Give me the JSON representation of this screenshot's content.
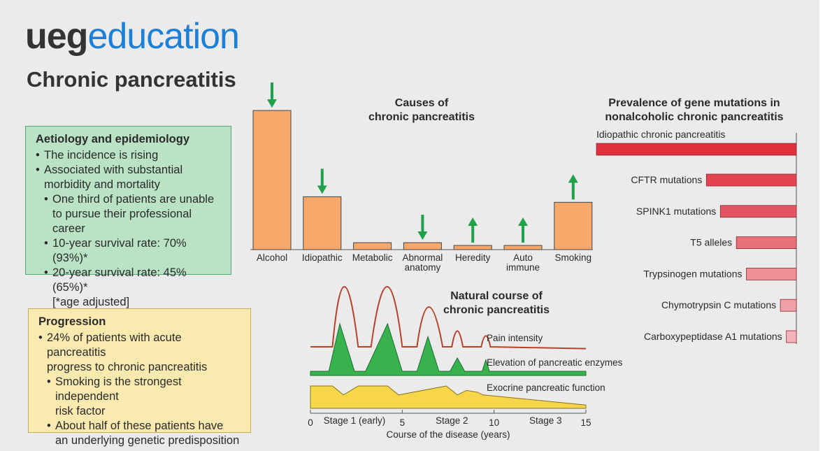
{
  "logo": {
    "part1": "ueg",
    "part2": "education"
  },
  "page_title": "Chronic pancreatitis",
  "aetiology": {
    "heading": "Aetiology and epidemiology",
    "items": [
      "The incidence is rising",
      "Associated with substantial",
      "morbidity and mortality",
      "One third of patients are unable",
      "to pursue their professional career",
      "10-year survival rate: 70% (93%)*",
      "20-year survival rate: 45% (65%)*",
      "[*age adjusted]"
    ]
  },
  "progression": {
    "heading": "Progression",
    "items": [
      "24% of patients with acute pancreatitis",
      "progress to chronic pancreatitis",
      "Smoking is the strongest independent",
      "risk factor",
      "About half of these patients have",
      "an underlying genetic predisposition"
    ]
  },
  "colors": {
    "panel": "#ebebeb",
    "bar": "#f7a86a",
    "arrow": "#1fa24a",
    "pain": "#b5432a",
    "enzyme": "#37b24d",
    "function": "#f7d64a",
    "gene_bar_dark": "#e0323c",
    "gene_bar_light": "#f2a4a9"
  },
  "chart_data": [
    {
      "type": "bar",
      "title_lines": [
        "Causes of",
        "chronic pancreatitis"
      ],
      "categories": [
        "Alcohol",
        "Idiopathic",
        "Metabolic",
        "Abnormal anatomy",
        "Heredity",
        "Auto immune",
        "Smoking"
      ],
      "label_lines": [
        [
          "Alcohol"
        ],
        [
          "Idiopathic"
        ],
        [
          "Metabolic"
        ],
        [
          "Abnormal",
          "anatomy"
        ],
        [
          "Heredity"
        ],
        [
          "Auto",
          "immune"
        ],
        [
          "Smoking"
        ]
      ],
      "values": [
        100,
        38,
        5,
        5,
        3,
        3,
        34
      ],
      "trend": [
        "down",
        "down",
        "none",
        "down",
        "up",
        "up",
        "up"
      ],
      "ylim": [
        0,
        100
      ]
    },
    {
      "type": "bar",
      "orientation": "horizontal",
      "title_lines": [
        "Prevalence of gene mutations in",
        "nonalcoholic chronic pancreatitis"
      ],
      "categories": [
        "Idiopathic chronic pancreatitis",
        "CFTR mutations",
        "SPINK1 mutations",
        "T5 alleles",
        "Trypsinogen mutations",
        "Chymotrypsin C mutations",
        "Carboxypeptidase A1 mutations"
      ],
      "values": [
        100,
        45,
        38,
        30,
        25,
        8,
        5
      ],
      "ylim": [
        0,
        100
      ]
    },
    {
      "type": "line",
      "title_lines": [
        "Natural course of",
        "chronic pancreatitis"
      ],
      "xlabel": "Course of the disease (years)",
      "xlim": [
        0,
        15
      ],
      "x_ticks": [
        0,
        5,
        10,
        15
      ],
      "stages": [
        {
          "label": "Stage 1 (early)",
          "x": 2.4
        },
        {
          "label": "Stage 2",
          "x": 7.7
        },
        {
          "label": "Stage 3",
          "x": 12.8
        }
      ],
      "series": [
        {
          "name": "Pain intensity",
          "x": [
            0,
            1.2,
            1.8,
            2.6,
            3.3,
            4.2,
            5.0,
            5.8,
            6.4,
            7.2,
            7.7,
            8.0,
            8.3,
            9.3,
            9.55,
            9.8,
            15
          ],
          "values": [
            0,
            0,
            100,
            0,
            0,
            100,
            0,
            0,
            67,
            0,
            0,
            28,
            0,
            0,
            20,
            0,
            -3
          ]
        },
        {
          "name": "Elevation of pancreatic enzymes",
          "x": [
            0,
            1.0,
            1.6,
            2.4,
            3.0,
            4.2,
            5.0,
            5.8,
            6.4,
            7.0,
            7.6,
            8.0,
            8.4,
            9.35,
            9.55,
            9.75,
            15
          ],
          "values": [
            0,
            0,
            100,
            0,
            0,
            100,
            0,
            0,
            73,
            0,
            0,
            28,
            0,
            0,
            24,
            0,
            0
          ]
        },
        {
          "name": "Exocrine pancreatic function",
          "x": [
            0,
            1.2,
            1.8,
            2.6,
            3.0,
            4.2,
            4.8,
            7.4,
            8.0,
            8.5,
            9.1,
            9.4,
            15
          ],
          "values": [
            100,
            100,
            60,
            100,
            100,
            100,
            60,
            100,
            60,
            80,
            72,
            60,
            15
          ]
        }
      ]
    }
  ]
}
